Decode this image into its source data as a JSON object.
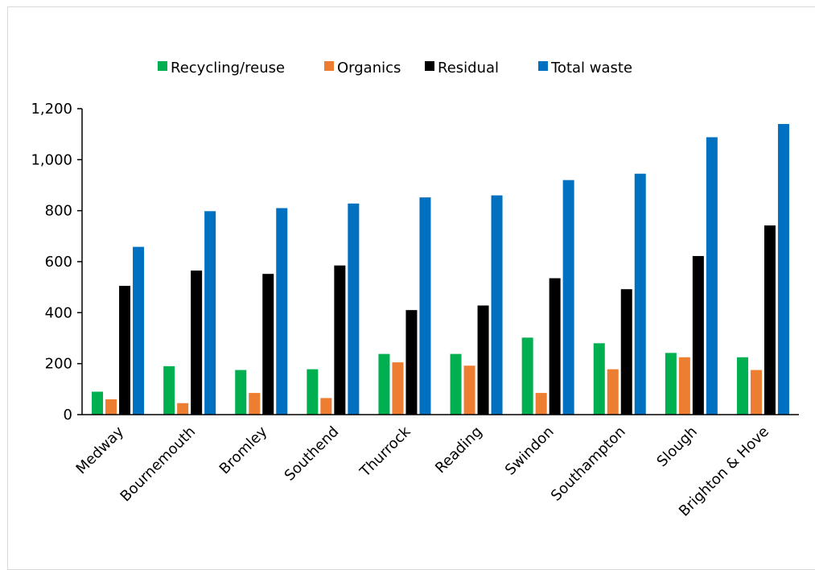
{
  "chart_data": {
    "type": "bar",
    "categories": [
      "Medway",
      "Bournemouth",
      "Bromley",
      "Southend",
      "Thurrock",
      "Reading",
      "Swindon",
      "Southampton",
      "Slough",
      "Brighton & Hove"
    ],
    "series": [
      {
        "name": "Recycling/reuse",
        "color": "#00b050",
        "values": [
          90,
          190,
          175,
          178,
          238,
          238,
          302,
          280,
          242,
          225
        ]
      },
      {
        "name": "Organics",
        "color": "#ed7d31",
        "values": [
          60,
          45,
          85,
          65,
          205,
          192,
          85,
          178,
          225,
          175
        ]
      },
      {
        "name": "Residual",
        "color": "#000000",
        "values": [
          505,
          565,
          552,
          585,
          410,
          428,
          535,
          492,
          622,
          742
        ]
      },
      {
        "name": "Total waste",
        "color": "#0070c0",
        "values": [
          658,
          798,
          810,
          828,
          852,
          860,
          920,
          945,
          1088,
          1140
        ]
      }
    ],
    "ylim": [
      0,
      1200
    ],
    "yticks": [
      "0",
      "200",
      "400",
      "600",
      "800",
      "1,000",
      "1,200"
    ],
    "ytick_values": [
      0,
      200,
      400,
      600,
      800,
      1000,
      1200
    ],
    "grid": false,
    "legend_position": "top-center",
    "title": "",
    "xlabel": "",
    "ylabel": ""
  }
}
